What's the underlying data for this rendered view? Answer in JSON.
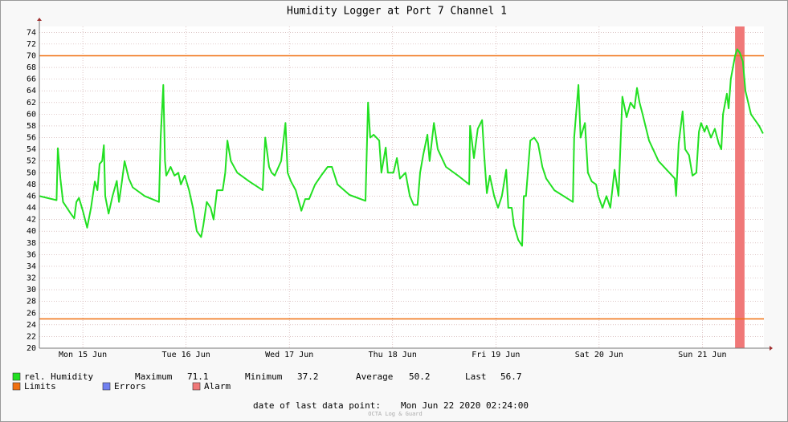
{
  "chart_data": {
    "type": "line",
    "title": "Humidity Logger at Port 7 Channel 1",
    "series": [
      {
        "name": "rel. Humidity",
        "color": "#22e022",
        "x": [
          1.9,
          5.9,
          6.2,
          6.8,
          7.4,
          8.3,
          9.2,
          10.0,
          10.5,
          11.1,
          12.0,
          13.0,
          13.9,
          14.8,
          15.4,
          15.9,
          16.5,
          16.9,
          17.2,
          18.0,
          18.9,
          19.9,
          20.4,
          21.0,
          21.7,
          22.7,
          23.6,
          26.4,
          29.7,
          30.1,
          30.7,
          31.1,
          31.4,
          32.4,
          33.3,
          34.2,
          34.8,
          35.7,
          36.7,
          37.6,
          38.5,
          39.5,
          40.0,
          40.8,
          41.7,
          42.4,
          43.2,
          44.5,
          45.1,
          45.6,
          46.4,
          47.9,
          50.7,
          53.8,
          54.4,
          55.3,
          55.9,
          56.6,
          58.1,
          59.1,
          59.6,
          60.4,
          61.5,
          62.8,
          63.7,
          64.6,
          66.0,
          67.4,
          68.9,
          69.9,
          71.2,
          74.0,
          77.7,
          78.3,
          78.8,
          79.6,
          80.9,
          81.4,
          82.4,
          82.9,
          84.2,
          85.0,
          85.7,
          87.0,
          88.0,
          88.9,
          89.8,
          90.4,
          91.1,
          92.1,
          92.6,
          93.6,
          94.5,
          96.4,
          99.2,
          101.8,
          102.0,
          102.9,
          103.8,
          104.8,
          105.3,
          105.9,
          106.6,
          107.6,
          108.5,
          109.4,
          110.4,
          110.9,
          111.7,
          112.2,
          113.2,
          114.1,
          114.5,
          115.0,
          116.0,
          116.9,
          117.8,
          118.8,
          119.7,
          121.6,
          125.9,
          126.2,
          127.2,
          127.7,
          128.7,
          129.4,
          130.3,
          131.3,
          131.8,
          132.8,
          133.7,
          134.6,
          135.6,
          136.5,
          137.4,
          138.4,
          139.3,
          140.2,
          140.8,
          141.4,
          142.1,
          143.6,
          145.8,
          149.6,
          149.9,
          150.5,
          151.4,
          152.0,
          152.9,
          153.7,
          154.6,
          155.2,
          155.7,
          156.5,
          157.0,
          158.0,
          158.9,
          159.8,
          160.4,
          160.8,
          161.7,
          162.1,
          162.6,
          163.6,
          164.1,
          164.7,
          165.4,
          166.0,
          167.3,
          169.2,
          170.1
        ],
        "values": [
          46,
          45.3,
          54.2,
          49,
          45,
          44,
          43,
          42.2,
          45,
          45.7,
          43.5,
          40.6,
          44,
          48.5,
          47,
          51.5,
          52,
          54.7,
          46,
          43,
          46,
          48.6,
          45,
          48,
          52,
          49,
          47.5,
          46,
          45,
          56,
          65,
          52,
          49.5,
          51,
          49.5,
          50,
          48,
          49.5,
          47,
          44,
          40,
          39,
          41,
          45,
          44,
          42,
          47,
          47,
          50,
          55.5,
          52,
          50,
          48.5,
          47,
          56,
          51,
          50,
          49.5,
          52,
          58.5,
          50,
          48.5,
          47,
          43.5,
          45.5,
          45.5,
          48,
          49.5,
          51,
          51,
          48,
          46.2,
          45.2,
          62,
          56,
          56.5,
          55.5,
          50,
          54.3,
          50,
          50,
          52.5,
          49,
          50,
          46,
          44.5,
          44.5,
          50,
          53,
          56.5,
          52,
          58.5,
          54,
          51,
          49.5,
          48,
          58,
          52.5,
          57.5,
          59,
          53,
          46.5,
          49.5,
          46,
          44,
          46,
          50.5,
          44,
          44,
          41,
          38.5,
          37.5,
          46,
          46,
          55.5,
          56,
          55,
          51,
          49,
          47,
          45,
          56,
          65,
          56,
          58.5,
          50,
          48.5,
          48,
          46,
          44,
          46,
          44,
          50.5,
          46,
          63,
          59.5,
          62,
          61,
          64.5,
          62,
          60,
          55.5,
          52,
          49,
          46,
          55,
          60.5,
          54,
          53,
          49.5,
          50,
          57,
          58.5,
          57,
          58,
          56,
          57.5,
          55,
          54,
          60,
          63.5,
          61,
          66,
          70,
          71.1,
          70.5,
          69,
          64,
          60,
          58,
          56.7
        ]
      }
    ],
    "stats": [
      {
        "label": "Maximum",
        "value": 71.1
      },
      {
        "label": "Minimum",
        "value": 37.2
      },
      {
        "label": "Average",
        "value": 50.2
      },
      {
        "label": "Last",
        "value": 56.7
      }
    ],
    "limits": {
      "name": "Limits",
      "color": "#f07010",
      "values": [
        70,
        25
      ]
    },
    "errors": {
      "name": "Errors",
      "color": "#7080f0"
    },
    "alarm": {
      "name": "Alarm",
      "color": "#f07878",
      "x": [
        163.6,
        165.8
      ]
    },
    "xlim": [
      1.9,
      170.3
    ],
    "xticks": [
      {
        "value": 12,
        "label": "Mon 15 Jun"
      },
      {
        "value": 36,
        "label": "Tue 16 Jun"
      },
      {
        "value": 60,
        "label": "Wed 17 Jun"
      },
      {
        "value": 84,
        "label": "Thu 18 Jun"
      },
      {
        "value": 108,
        "label": "Fri 19 Jun"
      },
      {
        "value": 132,
        "label": "Sat 20 Jun"
      },
      {
        "value": 156,
        "label": "Sun 21 Jun"
      }
    ],
    "ylim": [
      20,
      75
    ],
    "yticks": [
      20,
      22,
      24,
      26,
      28,
      30,
      32,
      34,
      36,
      38,
      40,
      42,
      44,
      46,
      48,
      50,
      52,
      54,
      56,
      58,
      60,
      62,
      64,
      66,
      68,
      70,
      72,
      74
    ],
    "grid": true,
    "last_point_label": "date of last data point:",
    "last_point": "Mon Jun 22 2020 02:24:00",
    "footer": "OCTA Log & Guard"
  }
}
